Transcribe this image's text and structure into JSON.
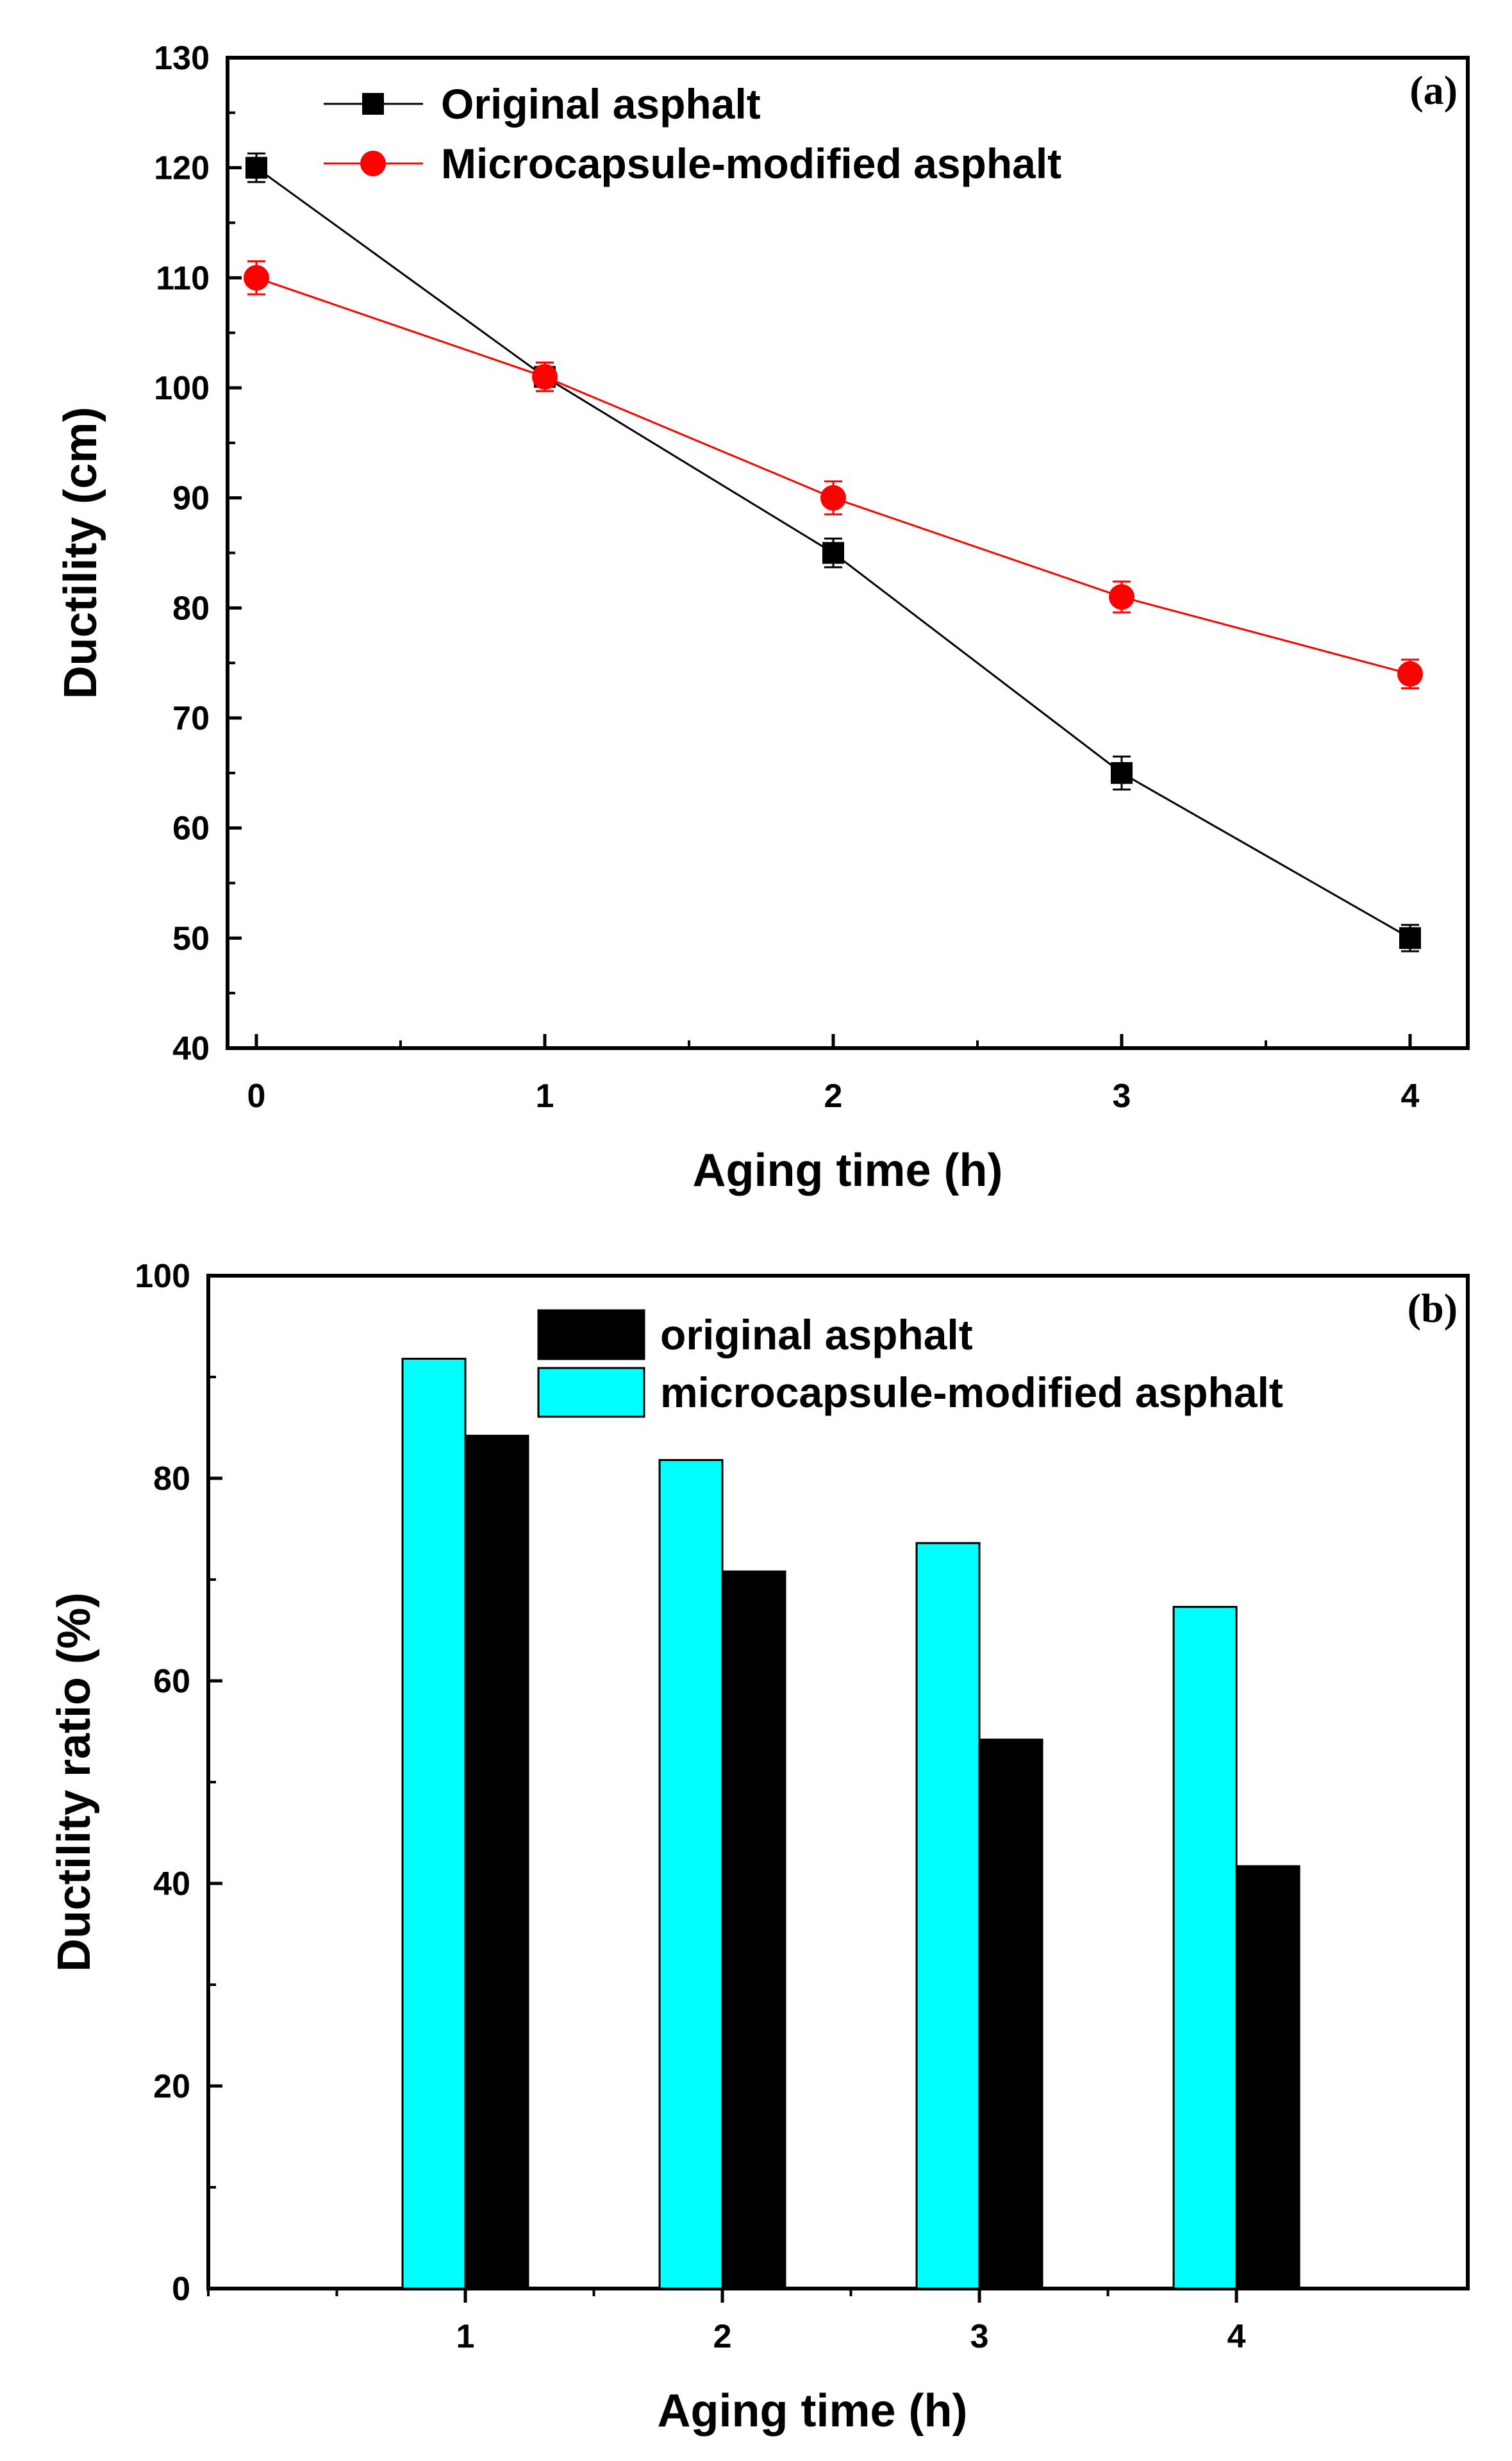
{
  "chart_data": [
    {
      "type": "line",
      "panel_label": "(a)",
      "xlabel": "Aging time (h)",
      "ylabel": "Ductility (cm)",
      "x": [
        0,
        1,
        2,
        3,
        4
      ],
      "xticks": [
        0,
        1,
        2,
        3,
        4
      ],
      "xlim": [
        -0.1,
        4.2
      ],
      "ylim": [
        40,
        130
      ],
      "yticks": [
        40,
        50,
        60,
        70,
        80,
        90,
        100,
        110,
        120,
        130
      ],
      "grid": false,
      "legend_position": "top-left",
      "series": [
        {
          "name": "Original asphalt",
          "values": [
            120,
            101,
            85,
            65,
            50
          ],
          "error": [
            1.3,
            1.3,
            1.3,
            1.5,
            1.2
          ],
          "color": "#000000",
          "marker": "square"
        },
        {
          "name": "Microcapsule-modified asphalt",
          "values": [
            110,
            101,
            90,
            81,
            74
          ],
          "error": [
            1.5,
            1.3,
            1.5,
            1.4,
            1.3
          ],
          "color": "#ff0000",
          "marker": "circle"
        }
      ]
    },
    {
      "type": "bar",
      "panel_label": "(b)",
      "xlabel": "Aging time (h)",
      "ylabel": "Ductility ratio (%)",
      "categories": [
        "1",
        "2",
        "3",
        "4"
      ],
      "ylim": [
        0,
        100
      ],
      "yticks": [
        0,
        20,
        40,
        60,
        80,
        100
      ],
      "grid": false,
      "legend_position": "top-center",
      "legend_order": [
        "original asphalt",
        "microcapsule-modified asphalt"
      ],
      "series": [
        {
          "name": "microcapsule-modified asphalt",
          "values": [
            91.8,
            81.8,
            73.6,
            67.3
          ],
          "color": "#00ffff"
        },
        {
          "name": "original asphalt",
          "values": [
            84.2,
            70.8,
            54.2,
            41.7
          ],
          "color": "#000000"
        }
      ]
    }
  ]
}
